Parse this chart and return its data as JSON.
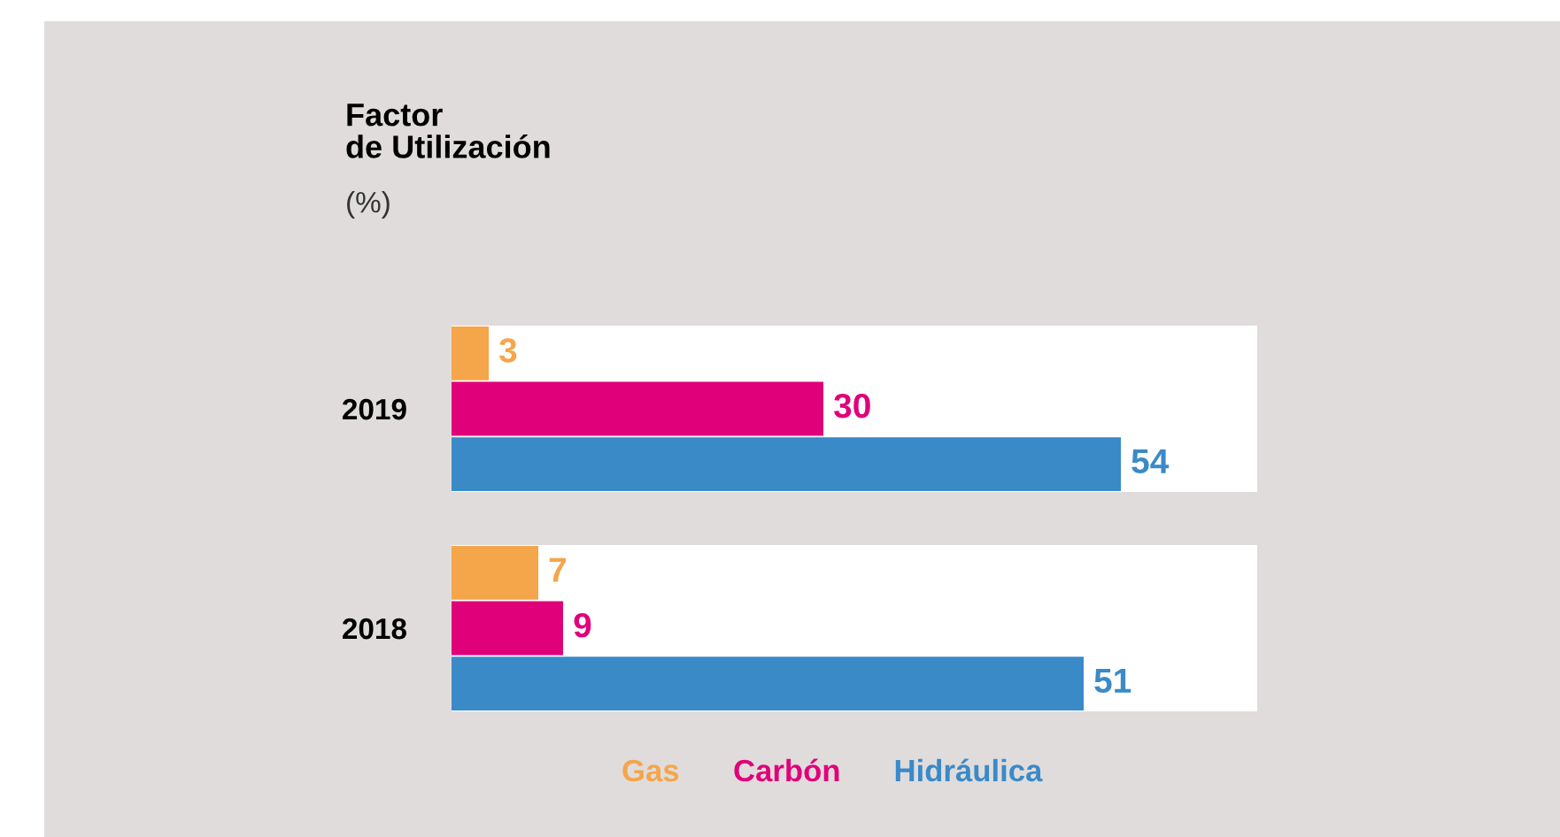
{
  "chart_data": {
    "type": "bar",
    "orientation": "horizontal",
    "title": "Factor\nde Utilización",
    "subtitle": "(%)",
    "categories": [
      "2019",
      "2018"
    ],
    "xlim": [
      0,
      65
    ],
    "data_labels": true,
    "legend": "bottom",
    "bands": [
      {
        "axis": "x",
        "from": 0,
        "to": 65,
        "color": "#ffffff"
      },
      {
        "axis": "x",
        "from": 0,
        "to": 65,
        "color": "#ffffff"
      }
    ],
    "series": [
      {
        "name": "Gas",
        "color": "#f5a54a",
        "values": [
          3,
          7
        ]
      },
      {
        "name": "Carbón",
        "color": "#e0007a",
        "values": [
          30,
          9
        ]
      },
      {
        "name": "Hidráulica",
        "color": "#3a8ac8",
        "values": [
          54,
          51
        ]
      }
    ]
  }
}
